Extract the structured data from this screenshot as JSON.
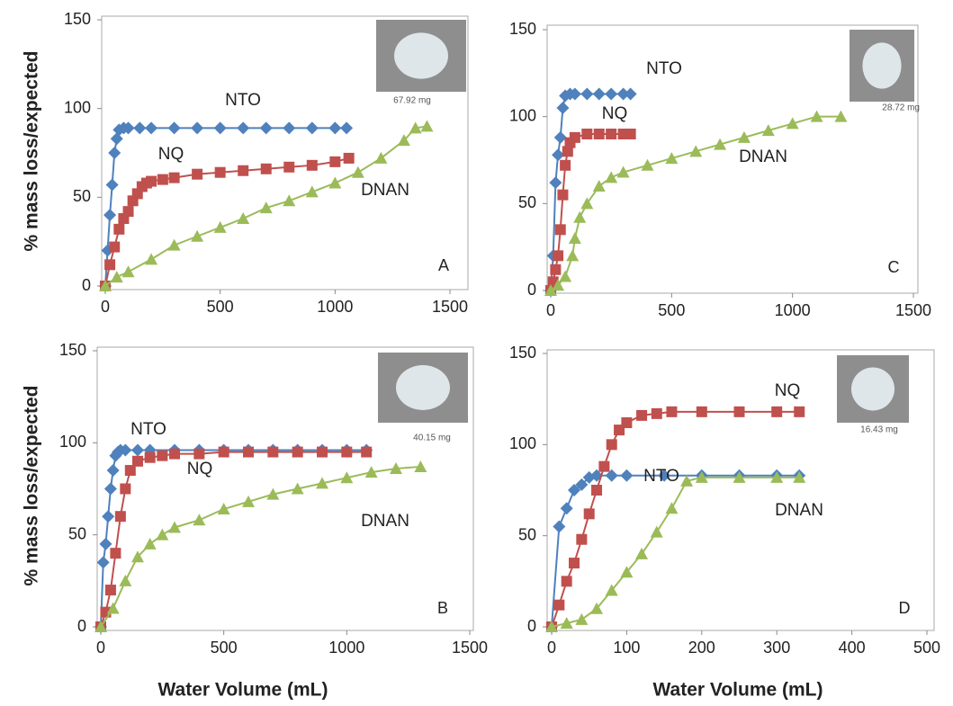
{
  "chart_data": [
    {
      "type": "line",
      "panel_label": "A",
      "inset_label": "67.92 mg",
      "ylabel": "% mass loss/expected",
      "annotations": [
        "NTO",
        "NQ",
        "DNAN"
      ],
      "xlim": [
        0,
        1500
      ],
      "xticks": [
        0,
        500,
        1000,
        1500
      ],
      "ylim": [
        0,
        150
      ],
      "yticks": [
        0,
        50,
        100,
        150
      ],
      "series": [
        {
          "name": "NTO",
          "color": "#4f81bd",
          "marker": "diamond",
          "x": [
            0,
            10,
            20,
            30,
            40,
            50,
            60,
            80,
            100,
            150,
            200,
            300,
            400,
            500,
            600,
            700,
            800,
            900,
            1000,
            1050
          ],
          "values": [
            0,
            20,
            40,
            57,
            75,
            83,
            88,
            89,
            89,
            89,
            89,
            89,
            89,
            89,
            89,
            89,
            89,
            89,
            89,
            89
          ]
        },
        {
          "name": "NQ",
          "color": "#c0504d",
          "marker": "square",
          "x": [
            0,
            20,
            40,
            60,
            80,
            100,
            120,
            140,
            160,
            180,
            200,
            250,
            300,
            400,
            500,
            600,
            700,
            800,
            900,
            1000,
            1060
          ],
          "values": [
            0,
            12,
            22,
            32,
            38,
            42,
            48,
            52,
            56,
            58,
            59,
            60,
            61,
            63,
            64,
            65,
            66,
            67,
            68,
            70,
            72
          ]
        },
        {
          "name": "DNAN",
          "color": "#9bbb59",
          "marker": "triangle",
          "x": [
            0,
            50,
            100,
            200,
            300,
            400,
            500,
            600,
            700,
            800,
            900,
            1000,
            1100,
            1200,
            1300,
            1350,
            1400
          ],
          "values": [
            0,
            5,
            8,
            15,
            23,
            28,
            33,
            38,
            44,
            48,
            53,
            58,
            64,
            72,
            82,
            89,
            90
          ]
        }
      ]
    },
    {
      "type": "line",
      "panel_label": "C",
      "inset_label": "28.72 mg",
      "annotations": [
        "NTO",
        "NQ",
        "DNAN"
      ],
      "xlim": [
        0,
        1500
      ],
      "xticks": [
        0,
        500,
        1000,
        1500
      ],
      "ylim": [
        0,
        150
      ],
      "yticks": [
        0,
        50,
        100,
        150
      ],
      "series": [
        {
          "name": "NTO",
          "color": "#4f81bd",
          "marker": "diamond",
          "x": [
            0,
            10,
            20,
            30,
            40,
            50,
            60,
            80,
            100,
            150,
            200,
            250,
            300,
            330
          ],
          "values": [
            0,
            20,
            62,
            78,
            88,
            105,
            112,
            113,
            113,
            113,
            113,
            113,
            113,
            113
          ]
        },
        {
          "name": "NQ",
          "color": "#c0504d",
          "marker": "square",
          "x": [
            0,
            10,
            20,
            30,
            40,
            50,
            60,
            70,
            80,
            100,
            150,
            200,
            250,
            300,
            330
          ],
          "values": [
            0,
            5,
            12,
            20,
            35,
            55,
            72,
            80,
            85,
            88,
            90,
            90,
            90,
            90,
            90
          ]
        },
        {
          "name": "DNAN",
          "color": "#9bbb59",
          "marker": "triangle",
          "x": [
            0,
            30,
            60,
            90,
            100,
            120,
            150,
            200,
            250,
            300,
            400,
            500,
            600,
            700,
            800,
            900,
            1000,
            1100,
            1200
          ],
          "values": [
            0,
            3,
            8,
            20,
            30,
            42,
            50,
            60,
            65,
            68,
            72,
            76,
            80,
            84,
            88,
            92,
            96,
            100,
            100
          ]
        }
      ]
    },
    {
      "type": "line",
      "panel_label": "B",
      "inset_label": "40.15 mg",
      "ylabel": "% mass loss/expected",
      "xlabel": "Water Volume (mL)",
      "annotations": [
        "NTO",
        "NQ",
        "DNAN"
      ],
      "xlim": [
        0,
        1500
      ],
      "xticks": [
        0,
        500,
        1000,
        1500
      ],
      "ylim": [
        0,
        150
      ],
      "yticks": [
        0,
        50,
        100,
        150
      ],
      "series": [
        {
          "name": "NTO",
          "color": "#4f81bd",
          "marker": "diamond",
          "x": [
            0,
            10,
            20,
            30,
            40,
            50,
            60,
            70,
            80,
            100,
            150,
            200,
            300,
            400,
            500,
            600,
            700,
            800,
            900,
            1000,
            1080
          ],
          "values": [
            0,
            35,
            45,
            60,
            75,
            85,
            93,
            95,
            96,
            96,
            96,
            96,
            96,
            96,
            96,
            96,
            96,
            96,
            96,
            96,
            96
          ]
        },
        {
          "name": "NQ",
          "color": "#c0504d",
          "marker": "square",
          "x": [
            0,
            20,
            40,
            60,
            80,
            100,
            120,
            150,
            200,
            250,
            300,
            400,
            500,
            600,
            700,
            800,
            900,
            1000,
            1080
          ],
          "values": [
            0,
            8,
            20,
            40,
            60,
            75,
            85,
            90,
            92,
            93,
            94,
            94,
            95,
            95,
            95,
            95,
            95,
            95,
            95
          ]
        },
        {
          "name": "DNAN",
          "color": "#9bbb59",
          "marker": "triangle",
          "x": [
            0,
            50,
            100,
            150,
            200,
            250,
            300,
            400,
            500,
            600,
            700,
            800,
            900,
            1000,
            1100,
            1200,
            1300
          ],
          "values": [
            0,
            10,
            25,
            38,
            45,
            50,
            54,
            58,
            64,
            68,
            72,
            75,
            78,
            81,
            84,
            86,
            87
          ]
        }
      ]
    },
    {
      "type": "line",
      "panel_label": "D",
      "inset_label": "16.43 mg",
      "xlabel": "Water Volume (mL)",
      "annotations": [
        "NQ",
        "NTO",
        "DNAN"
      ],
      "xlim": [
        0,
        500
      ],
      "xticks": [
        0,
        100,
        200,
        300,
        400,
        500
      ],
      "ylim": [
        0,
        150
      ],
      "yticks": [
        0,
        50,
        100,
        150
      ],
      "series": [
        {
          "name": "NTO",
          "color": "#4f81bd",
          "marker": "diamond",
          "x": [
            0,
            10,
            20,
            30,
            40,
            50,
            60,
            80,
            100,
            150,
            200,
            250,
            300,
            330
          ],
          "values": [
            0,
            55,
            65,
            75,
            78,
            82,
            83,
            83,
            83,
            83,
            83,
            83,
            83,
            83
          ]
        },
        {
          "name": "NQ",
          "color": "#c0504d",
          "marker": "square",
          "x": [
            0,
            10,
            20,
            30,
            40,
            50,
            60,
            70,
            80,
            90,
            100,
            120,
            140,
            160,
            200,
            250,
            300,
            330
          ],
          "values": [
            0,
            12,
            25,
            35,
            48,
            62,
            75,
            88,
            100,
            108,
            112,
            116,
            117,
            118,
            118,
            118,
            118,
            118
          ]
        },
        {
          "name": "DNAN",
          "color": "#9bbb59",
          "marker": "triangle",
          "x": [
            0,
            20,
            40,
            60,
            80,
            100,
            120,
            140,
            160,
            180,
            200,
            250,
            300,
            330
          ],
          "values": [
            0,
            2,
            4,
            10,
            20,
            30,
            40,
            52,
            65,
            80,
            82,
            82,
            82,
            82
          ]
        }
      ]
    }
  ]
}
